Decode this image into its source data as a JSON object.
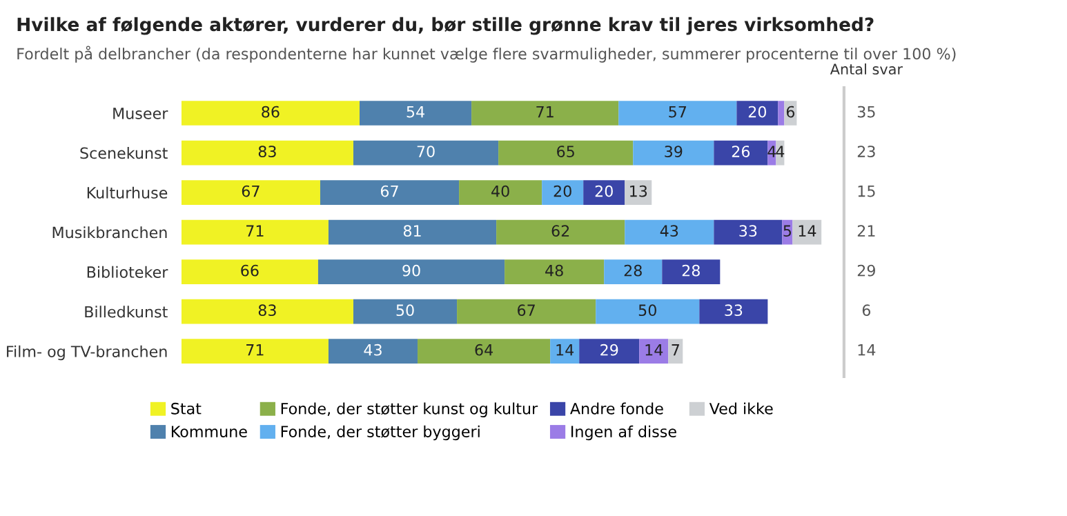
{
  "chart_data": {
    "type": "bar",
    "orientation": "horizontal",
    "stacked": true,
    "data_labels": true,
    "title": "Hvilke af følgende aktører, vurderer du, bør stille grønne krav til jeres virksomhed?",
    "subtitle": "Fordelt på delbrancher (da respondenterne har kunnet vælge flere svarmuligheder, summerer procenterne til over 100 %)",
    "categories": [
      "Museer",
      "Scenekunst",
      "Kulturhuse",
      "Musikbranchen",
      "Biblioteker",
      "Billedkunst",
      "Film- og TV-branchen"
    ],
    "series": [
      {
        "name": "Stat",
        "color": "#f0f224",
        "values": [
          86,
          83,
          67,
          71,
          66,
          83,
          71
        ]
      },
      {
        "name": "Kommune",
        "color": "#4f81ad",
        "values": [
          54,
          70,
          67,
          81,
          90,
          50,
          43
        ]
      },
      {
        "name": "Fonde, der støtter kunst og kultur",
        "color": "#8bb04a",
        "values": [
          71,
          65,
          40,
          62,
          48,
          67,
          64
        ]
      },
      {
        "name": "Fonde, der støtter byggeri",
        "color": "#62b0ef",
        "values": [
          57,
          39,
          20,
          43,
          28,
          50,
          14
        ]
      },
      {
        "name": "Andre fonde",
        "color": "#3a45a8",
        "values": [
          20,
          26,
          20,
          33,
          28,
          33,
          29
        ]
      },
      {
        "name": "Ingen af disse",
        "color": "#9b7ce6",
        "values": [
          3,
          4,
          null,
          5,
          null,
          null,
          14
        ],
        "value_labels": [
          null,
          "4",
          null,
          "5",
          null,
          null,
          "14"
        ]
      },
      {
        "name": "Ved ikke",
        "color": "#cdd0d3",
        "values": [
          6,
          4,
          13,
          14,
          null,
          null,
          7
        ]
      }
    ],
    "annotations": [
      "Antal svar",
      "35",
      "23",
      "15",
      "21",
      "29",
      "6",
      "14"
    ],
    "legend": "bottom",
    "tick_labels": "y",
    "grid": false
  }
}
